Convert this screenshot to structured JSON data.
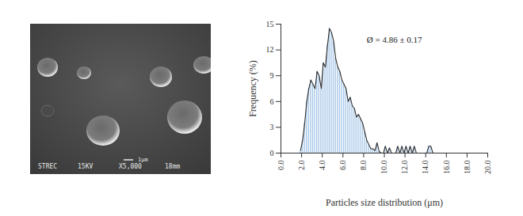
{
  "chart_data": {
    "type": "histogram",
    "x_label": "Particles size distribution (μm)",
    "y_label": "Frequency (%)",
    "bins": [
      1.8,
      2.0,
      2.2,
      2.4,
      2.6,
      2.8,
      3.0,
      3.2,
      3.4,
      3.6,
      3.8,
      4.0,
      4.2,
      4.4,
      4.6,
      4.8,
      5.0,
      5.2,
      5.4,
      5.6,
      5.8,
      6.0,
      6.2,
      6.4,
      6.6,
      6.8,
      7.0,
      7.2,
      7.4,
      7.6,
      7.8,
      8.0,
      8.2,
      8.4,
      8.6,
      8.8,
      9.0,
      9.2,
      9.4,
      9.6,
      9.8,
      10.0,
      10.2,
      10.4,
      10.6,
      10.8,
      11.0,
      11.2,
      11.4,
      11.6,
      11.8,
      12.0,
      12.2,
      12.4,
      12.6,
      12.8,
      13.0,
      13.2,
      13.4,
      13.6,
      13.8,
      14.0,
      14.2,
      14.4,
      14.6,
      14.8,
      15.0
    ],
    "series": [
      {
        "type": "bar",
        "color": "#a9c8e8",
        "values": [
          0.3,
          1.5,
          3.5,
          6,
          7.5,
          8.5,
          8,
          7.5,
          9.5,
          9,
          7.5,
          10.5,
          10,
          12.5,
          14.5,
          14,
          13,
          11,
          10,
          9.5,
          8.5,
          8,
          7.5,
          6,
          6.5,
          5.5,
          5.2,
          4.2,
          4.5,
          4,
          3.5,
          2.5,
          1.5,
          1,
          0.5,
          0.5,
          0.3,
          1.2,
          0.2,
          0,
          0,
          0.8,
          0,
          0.6,
          0,
          0,
          0,
          0.8,
          0,
          0.8,
          0,
          0.8,
          0,
          0.8,
          0,
          0.8,
          0,
          0,
          0,
          0,
          0,
          0,
          0.8,
          0.8,
          0,
          0
        ]
      },
      {
        "type": "line",
        "color": "#2b2b2b",
        "values": [
          0.3,
          1.5,
          3.5,
          6,
          7.5,
          8.5,
          8,
          7.5,
          9.5,
          9,
          7.5,
          10.5,
          10,
          12.5,
          14.5,
          14,
          13,
          11,
          10,
          9.5,
          8.5,
          8,
          7.5,
          6,
          6.5,
          5.5,
          5.2,
          4.2,
          4.5,
          4,
          3.5,
          2.5,
          1.5,
          1,
          0.5,
          0.5,
          0.3,
          1.2,
          0.2,
          0,
          0,
          0.8,
          0,
          0.6,
          0,
          0,
          0,
          0.8,
          0,
          0.8,
          0,
          0.8,
          0,
          0.8,
          0,
          0.8,
          0,
          0,
          0,
          0,
          0,
          0,
          0.8,
          0.8,
          0,
          0
        ]
      }
    ],
    "xlim": [
      0,
      20
    ],
    "xticks": [
      {
        "value": 0,
        "label": "0.0"
      },
      {
        "value": 2,
        "label": "2.0"
      },
      {
        "value": 4,
        "label": "4.0"
      },
      {
        "value": 6,
        "label": "6.0"
      },
      {
        "value": 8,
        "label": "8.0"
      },
      {
        "value": 10,
        "label": "10.0"
      },
      {
        "value": 12,
        "label": "12.0"
      },
      {
        "value": 14,
        "label": "14.0"
      },
      {
        "value": 16,
        "label": "16.0"
      },
      {
        "value": 18,
        "label": "18.0"
      },
      {
        "value": 20,
        "label": "20.0"
      }
    ],
    "ylim": [
      0,
      15
    ],
    "yticks": [
      0,
      3,
      6,
      9,
      12,
      15
    ],
    "annotations": [
      {
        "text": "Ø = 4.86 ± 0.17",
        "x": 8.3,
        "y": 13.2
      }
    ],
    "grid": false
  },
  "micrograph": {
    "labels": [
      "STREC",
      "15KV",
      "X5,000",
      "18mm"
    ],
    "scale_bar": "1μm"
  }
}
